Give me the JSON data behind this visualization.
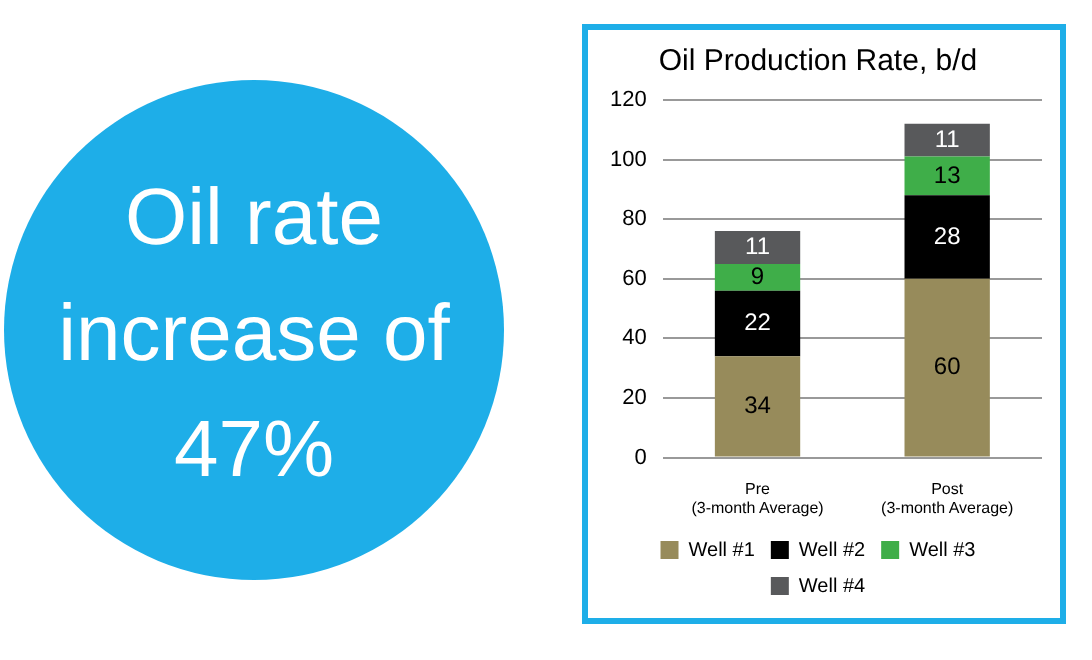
{
  "chart_data": {
    "type": "bar",
    "title": "Oil Production Rate, b/d",
    "categories": [
      "Pre\n(3-month Average)",
      "Post\n(3-month Average)"
    ],
    "series": [
      {
        "name": "Well #1",
        "color": "#978b5b",
        "values": [
          34,
          60
        ]
      },
      {
        "name": "Well #2",
        "color": "#000000",
        "values": [
          22,
          28
        ]
      },
      {
        "name": "Well #3",
        "color": "#3fae49",
        "values": [
          9,
          13
        ]
      },
      {
        "name": "Well #4",
        "color": "#58595b",
        "values": [
          11,
          11
        ]
      }
    ],
    "stacked": true,
    "data_labels": true,
    "ylim": [
      0,
      120
    ],
    "yticks": [
      0,
      20,
      40,
      60,
      80,
      100,
      120
    ],
    "grid": "y",
    "legend": "bottom",
    "annotations": [
      "Oil rate increase of 47%"
    ]
  }
}
